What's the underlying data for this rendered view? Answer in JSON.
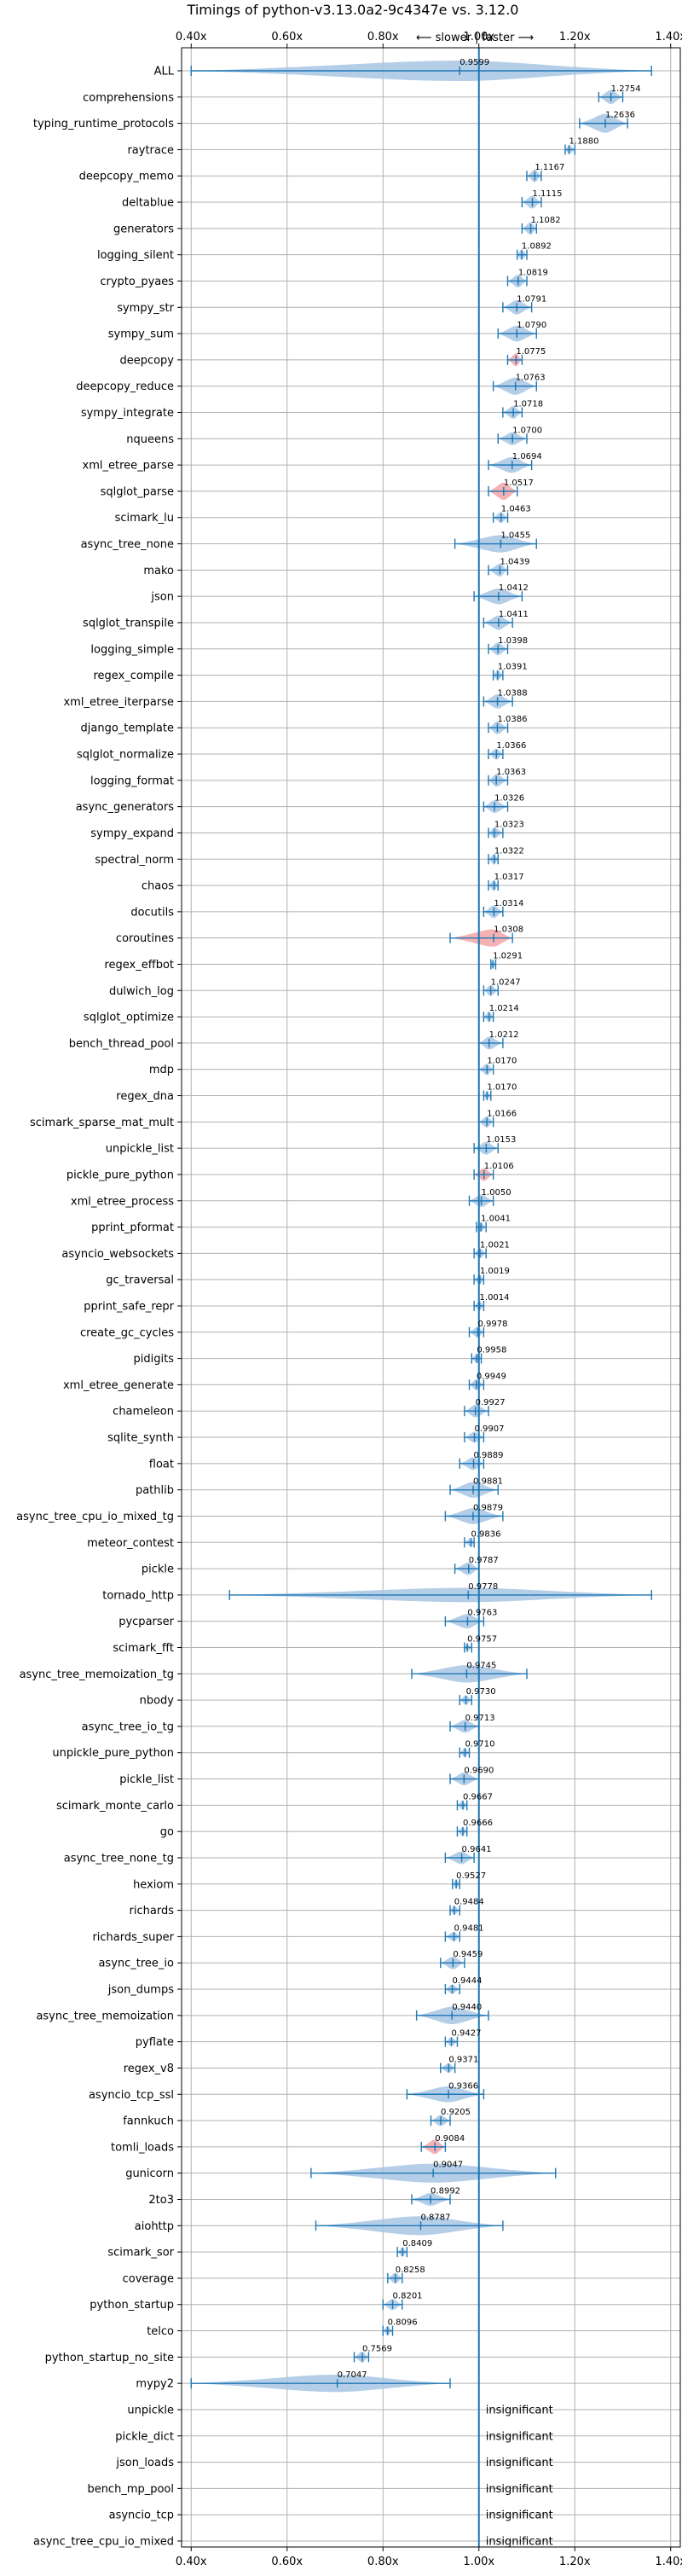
{
  "chart_data": {
    "type": "violin",
    "title": "Timings of python-v3.13.0a2-9c4347e vs. 3.12.0",
    "subtitle": "⟵ slower | faster ⟶",
    "xlim": [
      0.38,
      1.42
    ],
    "xticks": [
      0.4,
      0.6,
      0.8,
      1.0,
      1.2,
      1.4
    ],
    "xtick_labels": [
      "0.40x",
      "0.60x",
      "0.80x",
      "1.00x",
      "1.20x",
      "1.40x"
    ],
    "reference_line": 1.0,
    "grid": true,
    "insignificant_label": "insignificant",
    "colors": {
      "violin_faster": "#a7c6e4",
      "violin_slower": "#f2a5a8",
      "errorbar": "#1f77b4",
      "reference": "#1f77b4"
    },
    "benchmarks": [
      {
        "name": "ALL",
        "value": 0.9599,
        "lo": 0.4,
        "hi": 1.36,
        "width": 1.0,
        "slower": false
      },
      {
        "name": "comprehensions",
        "value": 1.2754,
        "lo": 1.25,
        "hi": 1.3,
        "width": 0.6,
        "slower": false
      },
      {
        "name": "typing_runtime_protocols",
        "value": 1.2636,
        "lo": 1.21,
        "hi": 1.31,
        "width": 0.9,
        "slower": false
      },
      {
        "name": "raytrace",
        "value": 1.188,
        "lo": 1.18,
        "hi": 1.2,
        "width": 0.3,
        "slower": false
      },
      {
        "name": "deepcopy_memo",
        "value": 1.1167,
        "lo": 1.1,
        "hi": 1.13,
        "width": 0.5,
        "slower": false
      },
      {
        "name": "deltablue",
        "value": 1.1115,
        "lo": 1.09,
        "hi": 1.13,
        "width": 0.5,
        "slower": false
      },
      {
        "name": "generators",
        "value": 1.1082,
        "lo": 1.09,
        "hi": 1.12,
        "width": 0.5,
        "slower": false
      },
      {
        "name": "logging_silent",
        "value": 1.0892,
        "lo": 1.08,
        "hi": 1.1,
        "width": 0.4,
        "slower": false
      },
      {
        "name": "crypto_pyaes",
        "value": 1.0819,
        "lo": 1.06,
        "hi": 1.1,
        "width": 0.5,
        "slower": false
      },
      {
        "name": "sympy_str",
        "value": 1.0791,
        "lo": 1.05,
        "hi": 1.11,
        "width": 0.6,
        "slower": false
      },
      {
        "name": "sympy_sum",
        "value": 1.079,
        "lo": 1.04,
        "hi": 1.12,
        "width": 0.7,
        "slower": false
      },
      {
        "name": "deepcopy",
        "value": 1.0775,
        "lo": 1.06,
        "hi": 1.09,
        "width": 0.5,
        "slower": true
      },
      {
        "name": "deepcopy_reduce",
        "value": 1.0763,
        "lo": 1.03,
        "hi": 1.12,
        "width": 0.8,
        "slower": false
      },
      {
        "name": "sympy_integrate",
        "value": 1.0718,
        "lo": 1.05,
        "hi": 1.09,
        "width": 0.5,
        "slower": false
      },
      {
        "name": "nqueens",
        "value": 1.07,
        "lo": 1.04,
        "hi": 1.1,
        "width": 0.5,
        "slower": false
      },
      {
        "name": "xml_etree_parse",
        "value": 1.0694,
        "lo": 1.02,
        "hi": 1.11,
        "width": 0.7,
        "slower": false
      },
      {
        "name": "sqlglot_parse",
        "value": 1.0517,
        "lo": 1.02,
        "hi": 1.08,
        "width": 0.8,
        "slower": true
      },
      {
        "name": "scimark_lu",
        "value": 1.0463,
        "lo": 1.03,
        "hi": 1.06,
        "width": 0.4,
        "slower": false
      },
      {
        "name": "async_tree_none",
        "value": 1.0455,
        "lo": 0.95,
        "hi": 1.12,
        "width": 0.8,
        "slower": false
      },
      {
        "name": "mako",
        "value": 1.0439,
        "lo": 1.02,
        "hi": 1.06,
        "width": 0.5,
        "slower": false
      },
      {
        "name": "json",
        "value": 1.0412,
        "lo": 0.99,
        "hi": 1.09,
        "width": 0.7,
        "slower": false
      },
      {
        "name": "sqlglot_transpile",
        "value": 1.0411,
        "lo": 1.01,
        "hi": 1.07,
        "width": 0.6,
        "slower": false
      },
      {
        "name": "logging_simple",
        "value": 1.0398,
        "lo": 1.02,
        "hi": 1.06,
        "width": 0.5,
        "slower": false
      },
      {
        "name": "regex_compile",
        "value": 1.0391,
        "lo": 1.03,
        "hi": 1.05,
        "width": 0.4,
        "slower": false
      },
      {
        "name": "xml_etree_iterparse",
        "value": 1.0388,
        "lo": 1.01,
        "hi": 1.07,
        "width": 0.6,
        "slower": false
      },
      {
        "name": "django_template",
        "value": 1.0386,
        "lo": 1.02,
        "hi": 1.06,
        "width": 0.5,
        "slower": false
      },
      {
        "name": "sqlglot_normalize",
        "value": 1.0366,
        "lo": 1.02,
        "hi": 1.05,
        "width": 0.4,
        "slower": false
      },
      {
        "name": "logging_format",
        "value": 1.0363,
        "lo": 1.02,
        "hi": 1.06,
        "width": 0.5,
        "slower": false
      },
      {
        "name": "async_generators",
        "value": 1.0326,
        "lo": 1.01,
        "hi": 1.06,
        "width": 0.5,
        "slower": false
      },
      {
        "name": "sympy_expand",
        "value": 1.0323,
        "lo": 1.02,
        "hi": 1.05,
        "width": 0.4,
        "slower": false
      },
      {
        "name": "spectral_norm",
        "value": 1.0322,
        "lo": 1.02,
        "hi": 1.04,
        "width": 0.4,
        "slower": false
      },
      {
        "name": "chaos",
        "value": 1.0317,
        "lo": 1.02,
        "hi": 1.04,
        "width": 0.4,
        "slower": false
      },
      {
        "name": "docutils",
        "value": 1.0314,
        "lo": 1.01,
        "hi": 1.05,
        "width": 0.5,
        "slower": false
      },
      {
        "name": "coroutines",
        "value": 1.0308,
        "lo": 0.94,
        "hi": 1.07,
        "width": 0.8,
        "slower": true
      },
      {
        "name": "regex_effbot",
        "value": 1.0291,
        "lo": 1.025,
        "hi": 1.035,
        "width": 0.2,
        "slower": false
      },
      {
        "name": "dulwich_log",
        "value": 1.0247,
        "lo": 1.01,
        "hi": 1.04,
        "width": 0.4,
        "slower": false
      },
      {
        "name": "sqlglot_optimize",
        "value": 1.0214,
        "lo": 1.01,
        "hi": 1.03,
        "width": 0.4,
        "slower": false
      },
      {
        "name": "bench_thread_pool",
        "value": 1.0212,
        "lo": 1.0,
        "hi": 1.05,
        "width": 0.5,
        "slower": false
      },
      {
        "name": "mdp",
        "value": 1.017,
        "lo": 1.0,
        "hi": 1.03,
        "width": 0.4,
        "slower": false
      },
      {
        "name": "regex_dna",
        "value": 1.017,
        "lo": 1.01,
        "hi": 1.025,
        "width": 0.3,
        "slower": false
      },
      {
        "name": "scimark_sparse_mat_mult",
        "value": 1.0166,
        "lo": 1.0,
        "hi": 1.03,
        "width": 0.4,
        "slower": false
      },
      {
        "name": "unpickle_list",
        "value": 1.0153,
        "lo": 0.99,
        "hi": 1.04,
        "width": 0.5,
        "slower": false
      },
      {
        "name": "pickle_pure_python",
        "value": 1.0106,
        "lo": 0.99,
        "hi": 1.03,
        "width": 0.5,
        "slower": true
      },
      {
        "name": "xml_etree_process",
        "value": 1.005,
        "lo": 0.98,
        "hi": 1.03,
        "width": 0.5,
        "slower": false
      },
      {
        "name": "pprint_pformat",
        "value": 1.0041,
        "lo": 0.995,
        "hi": 1.015,
        "width": 0.3,
        "slower": false
      },
      {
        "name": "asyncio_websockets",
        "value": 1.0021,
        "lo": 0.99,
        "hi": 1.015,
        "width": 0.3,
        "slower": false
      },
      {
        "name": "gc_traversal",
        "value": 1.0019,
        "lo": 0.99,
        "hi": 1.01,
        "width": 0.3,
        "slower": false
      },
      {
        "name": "pprint_safe_repr",
        "value": 1.0014,
        "lo": 0.99,
        "hi": 1.01,
        "width": 0.3,
        "slower": false
      },
      {
        "name": "create_gc_cycles",
        "value": 0.9978,
        "lo": 0.98,
        "hi": 1.01,
        "width": 0.4,
        "slower": false
      },
      {
        "name": "pidigits",
        "value": 0.9958,
        "lo": 0.985,
        "hi": 1.005,
        "width": 0.3,
        "slower": false
      },
      {
        "name": "xml_etree_generate",
        "value": 0.9949,
        "lo": 0.98,
        "hi": 1.01,
        "width": 0.4,
        "slower": false
      },
      {
        "name": "chameleon",
        "value": 0.9927,
        "lo": 0.97,
        "hi": 1.02,
        "width": 0.5,
        "slower": false
      },
      {
        "name": "sqlite_synth",
        "value": 0.9907,
        "lo": 0.97,
        "hi": 1.01,
        "width": 0.4,
        "slower": false
      },
      {
        "name": "float",
        "value": 0.9889,
        "lo": 0.96,
        "hi": 1.01,
        "width": 0.5,
        "slower": false
      },
      {
        "name": "pathlib",
        "value": 0.9881,
        "lo": 0.94,
        "hi": 1.04,
        "width": 0.7,
        "slower": false
      },
      {
        "name": "async_tree_cpu_io_mixed_tg",
        "value": 0.9879,
        "lo": 0.93,
        "hi": 1.05,
        "width": 0.7,
        "slower": false
      },
      {
        "name": "meteor_contest",
        "value": 0.9836,
        "lo": 0.97,
        "hi": 0.99,
        "width": 0.3,
        "slower": false
      },
      {
        "name": "pickle",
        "value": 0.9787,
        "lo": 0.95,
        "hi": 1.0,
        "width": 0.5,
        "slower": false
      },
      {
        "name": "tornado_http",
        "value": 0.9778,
        "lo": 0.48,
        "hi": 1.36,
        "width": 0.6,
        "slower": false
      },
      {
        "name": "pycparser",
        "value": 0.9763,
        "lo": 0.93,
        "hi": 1.01,
        "width": 0.6,
        "slower": false
      },
      {
        "name": "scimark_fft",
        "value": 0.9757,
        "lo": 0.97,
        "hi": 0.985,
        "width": 0.2,
        "slower": false
      },
      {
        "name": "async_tree_memoization_tg",
        "value": 0.9745,
        "lo": 0.86,
        "hi": 1.1,
        "width": 0.8,
        "slower": false
      },
      {
        "name": "nbody",
        "value": 0.973,
        "lo": 0.96,
        "hi": 0.985,
        "width": 0.3,
        "slower": false
      },
      {
        "name": "async_tree_io_tg",
        "value": 0.9713,
        "lo": 0.94,
        "hi": 1.0,
        "width": 0.5,
        "slower": false
      },
      {
        "name": "unpickle_pure_python",
        "value": 0.971,
        "lo": 0.96,
        "hi": 0.98,
        "width": 0.3,
        "slower": false
      },
      {
        "name": "pickle_list",
        "value": 0.969,
        "lo": 0.94,
        "hi": 1.0,
        "width": 0.5,
        "slower": false
      },
      {
        "name": "scimark_monte_carlo",
        "value": 0.9667,
        "lo": 0.955,
        "hi": 0.975,
        "width": 0.3,
        "slower": false
      },
      {
        "name": "go",
        "value": 0.9666,
        "lo": 0.955,
        "hi": 0.975,
        "width": 0.3,
        "slower": false
      },
      {
        "name": "async_tree_none_tg",
        "value": 0.9641,
        "lo": 0.93,
        "hi": 0.99,
        "width": 0.5,
        "slower": false
      },
      {
        "name": "hexiom",
        "value": 0.9527,
        "lo": 0.945,
        "hi": 0.96,
        "width": 0.3,
        "slower": false
      },
      {
        "name": "richards",
        "value": 0.9484,
        "lo": 0.94,
        "hi": 0.96,
        "width": 0.3,
        "slower": false
      },
      {
        "name": "richards_super",
        "value": 0.9481,
        "lo": 0.93,
        "hi": 0.96,
        "width": 0.3,
        "slower": false
      },
      {
        "name": "async_tree_io",
        "value": 0.9459,
        "lo": 0.92,
        "hi": 0.97,
        "width": 0.5,
        "slower": false
      },
      {
        "name": "json_dumps",
        "value": 0.9444,
        "lo": 0.93,
        "hi": 0.96,
        "width": 0.3,
        "slower": false
      },
      {
        "name": "async_tree_memoization",
        "value": 0.944,
        "lo": 0.87,
        "hi": 1.02,
        "width": 0.8,
        "slower": false
      },
      {
        "name": "pyflate",
        "value": 0.9427,
        "lo": 0.93,
        "hi": 0.955,
        "width": 0.3,
        "slower": false
      },
      {
        "name": "regex_v8",
        "value": 0.9371,
        "lo": 0.92,
        "hi": 0.95,
        "width": 0.3,
        "slower": false
      },
      {
        "name": "asyncio_tcp_ssl",
        "value": 0.9366,
        "lo": 0.85,
        "hi": 1.01,
        "width": 0.7,
        "slower": false
      },
      {
        "name": "fannkuch",
        "value": 0.9205,
        "lo": 0.9,
        "hi": 0.94,
        "width": 0.4,
        "slower": false
      },
      {
        "name": "tomli_loads",
        "value": 0.9084,
        "lo": 0.88,
        "hi": 0.93,
        "width": 0.6,
        "slower": true
      },
      {
        "name": "gunicorn",
        "value": 0.9047,
        "lo": 0.65,
        "hi": 1.16,
        "width": 0.9,
        "slower": false
      },
      {
        "name": "2to3",
        "value": 0.8992,
        "lo": 0.86,
        "hi": 0.94,
        "width": 0.5,
        "slower": false
      },
      {
        "name": "aiohttp",
        "value": 0.8787,
        "lo": 0.66,
        "hi": 1.05,
        "width": 0.9,
        "slower": false
      },
      {
        "name": "scimark_sor",
        "value": 0.8409,
        "lo": 0.83,
        "hi": 0.85,
        "width": 0.3,
        "slower": false
      },
      {
        "name": "coverage",
        "value": 0.8258,
        "lo": 0.81,
        "hi": 0.84,
        "width": 0.4,
        "slower": false
      },
      {
        "name": "python_startup",
        "value": 0.8201,
        "lo": 0.8,
        "hi": 0.84,
        "width": 0.4,
        "slower": false
      },
      {
        "name": "telco",
        "value": 0.8096,
        "lo": 0.8,
        "hi": 0.82,
        "width": 0.3,
        "slower": false
      },
      {
        "name": "python_startup_no_site",
        "value": 0.7569,
        "lo": 0.74,
        "hi": 0.77,
        "width": 0.4,
        "slower": false
      },
      {
        "name": "mypy2",
        "value": 0.7047,
        "lo": 0.4,
        "hi": 0.94,
        "width": 0.8,
        "slower": false
      },
      {
        "name": "unpickle",
        "insignificant": true
      },
      {
        "name": "pickle_dict",
        "insignificant": true
      },
      {
        "name": "json_loads",
        "insignificant": true
      },
      {
        "name": "bench_mp_pool",
        "insignificant": true
      },
      {
        "name": "asyncio_tcp",
        "insignificant": true
      },
      {
        "name": "async_tree_cpu_io_mixed",
        "insignificant": true
      }
    ]
  }
}
